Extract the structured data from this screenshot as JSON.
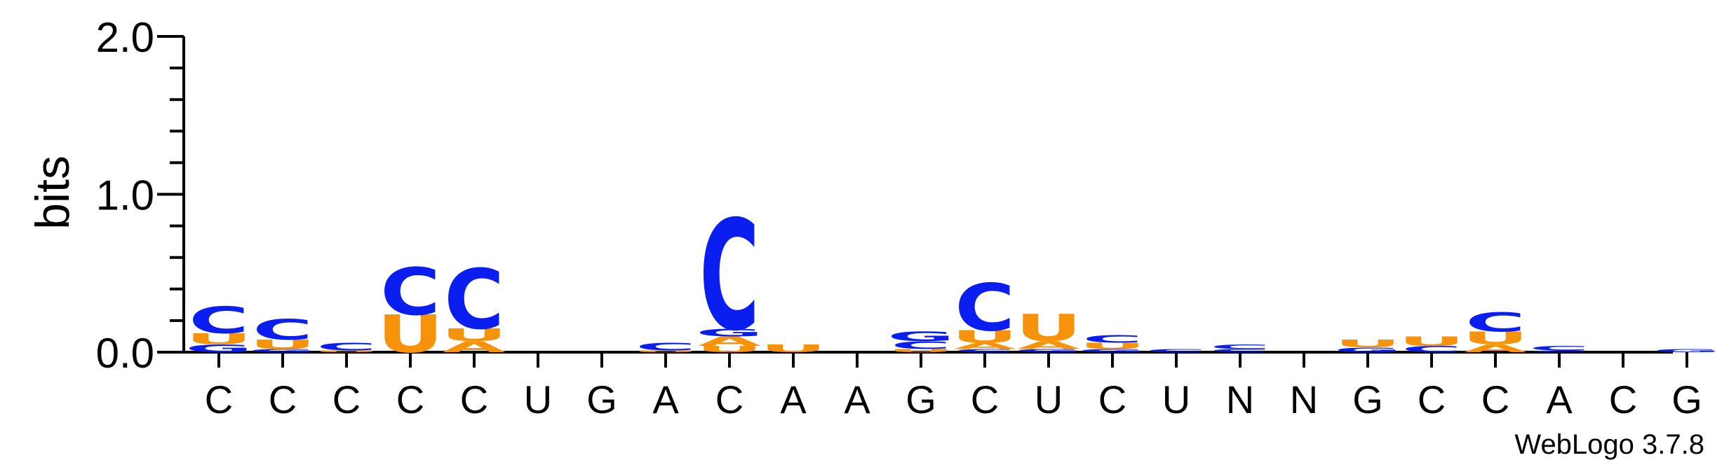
{
  "chart_data": {
    "type": "sequence-logo",
    "ylabel": "bits",
    "ylim": [
      0,
      2.0
    ],
    "yticks": [
      {
        "value": 0.0,
        "label": "0.0"
      },
      {
        "value": 1.0,
        "label": "1.0"
      },
      {
        "value": 2.0,
        "label": "2.0"
      }
    ],
    "x_tick_labels": [
      "C",
      "C",
      "C",
      "C",
      "C",
      "U",
      "G",
      "A",
      "C",
      "A",
      "A",
      "G",
      "C",
      "U",
      "C",
      "U",
      "N",
      "N",
      "G",
      "C",
      "C",
      "A",
      "C",
      "G"
    ],
    "credit": "WebLogo 3.7.8",
    "colors": {
      "C": "#0a1ef0",
      "G": "#0a1ef0",
      "U": "#f7930a",
      "A": "#f7930a"
    },
    "positions": [
      {
        "stack": [
          {
            "l": "G",
            "h": 0.05
          },
          {
            "l": "U",
            "h": 0.07
          },
          {
            "l": "C",
            "h": 0.17
          }
        ]
      },
      {
        "stack": [
          {
            "l": "G",
            "h": 0.02
          },
          {
            "l": "U",
            "h": 0.06
          },
          {
            "l": "C",
            "h": 0.13
          }
        ]
      },
      {
        "stack": [
          {
            "l": "U",
            "h": 0.01
          },
          {
            "l": "C",
            "h": 0.05
          }
        ]
      },
      {
        "stack": [
          {
            "l": "U",
            "h": 0.24
          },
          {
            "l": "C",
            "h": 0.3
          }
        ]
      },
      {
        "stack": [
          {
            "l": "A",
            "h": 0.07
          },
          {
            "l": "U",
            "h": 0.08
          },
          {
            "l": "C",
            "h": 0.38
          }
        ]
      },
      {
        "stack": []
      },
      {
        "stack": []
      },
      {
        "stack": [
          {
            "l": "U",
            "h": 0.01
          },
          {
            "l": "C",
            "h": 0.05
          }
        ]
      },
      {
        "stack": [
          {
            "l": "U",
            "h": 0.04
          },
          {
            "l": "A",
            "h": 0.06
          },
          {
            "l": "G",
            "h": 0.05
          },
          {
            "l": "C",
            "h": 0.7
          }
        ]
      },
      {
        "stack": [
          {
            "l": "U",
            "h": 0.05
          }
        ]
      },
      {
        "stack": []
      },
      {
        "stack": [
          {
            "l": "U",
            "h": 0.02
          },
          {
            "l": "C",
            "h": 0.05
          },
          {
            "l": "G",
            "h": 0.06
          }
        ]
      },
      {
        "stack": [
          {
            "l": "C",
            "h": 0.02
          },
          {
            "l": "A",
            "h": 0.04
          },
          {
            "l": "U",
            "h": 0.08
          },
          {
            "l": "C",
            "h": 0.3
          }
        ]
      },
      {
        "stack": [
          {
            "l": "G",
            "h": 0.02
          },
          {
            "l": "A",
            "h": 0.05
          },
          {
            "l": "U",
            "h": 0.17
          }
        ]
      },
      {
        "stack": [
          {
            "l": "G",
            "h": 0.02
          },
          {
            "l": "U",
            "h": 0.04
          },
          {
            "l": "C",
            "h": 0.05
          }
        ]
      },
      {
        "stack": [
          {
            "l": "C",
            "h": 0.02
          }
        ]
      },
      {
        "stack": [
          {
            "l": "C",
            "h": 0.02
          },
          {
            "l": "C",
            "h": 0.03
          }
        ]
      },
      {
        "stack": []
      },
      {
        "stack": [
          {
            "l": "G",
            "h": 0.03
          },
          {
            "l": "U",
            "h": 0.05
          }
        ]
      },
      {
        "stack": [
          {
            "l": "C",
            "h": 0.04
          },
          {
            "l": "U",
            "h": 0.06
          }
        ]
      },
      {
        "stack": [
          {
            "l": "A",
            "h": 0.05
          },
          {
            "l": "U",
            "h": 0.08
          },
          {
            "l": "C",
            "h": 0.12
          }
        ]
      },
      {
        "stack": [
          {
            "l": "C",
            "h": 0.01
          },
          {
            "l": "C",
            "h": 0.03
          }
        ]
      },
      {
        "stack": []
      },
      {
        "stack": [
          {
            "l": "G",
            "h": 0.02
          }
        ]
      }
    ]
  }
}
